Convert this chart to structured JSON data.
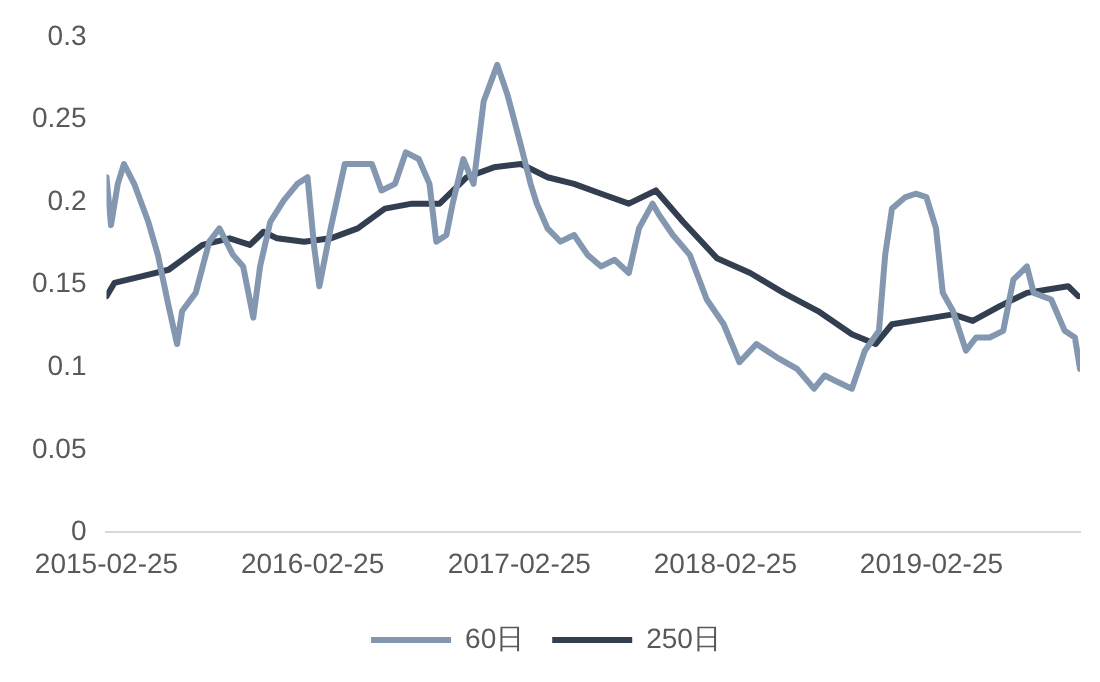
{
  "chart_data": {
    "type": "line",
    "xlim": [
      "2015-02-25",
      "2019-11-15"
    ],
    "xticks": [
      "2015-02-25",
      "2016-02-25",
      "2017-02-25",
      "2018-02-25",
      "2019-02-25"
    ],
    "ylim": [
      0,
      0.3
    ],
    "yticks": [
      0,
      0.05,
      0.1,
      0.15,
      0.2,
      0.25,
      0.3
    ],
    "grid": false,
    "legend": "bottom",
    "marker": "none",
    "line_style": "solid",
    "series": [
      {
        "name": "60日",
        "color": "#8497b0",
        "x": [
          "2015-02-25",
          "2015-03-05",
          "2015-03-17",
          "2015-03-28",
          "2015-04-15",
          "2015-05-10",
          "2015-05-27",
          "2015-06-15",
          "2015-06-30",
          "2015-07-09",
          "2015-08-02",
          "2015-08-26",
          "2015-09-13",
          "2015-10-07",
          "2015-10-25",
          "2015-11-12",
          "2015-11-24",
          "2015-12-12",
          "2016-01-05",
          "2016-01-29",
          "2016-02-16",
          "2016-02-28",
          "2016-03-08",
          "2016-03-28",
          "2016-04-22",
          "2016-05-15",
          "2016-06-09",
          "2016-06-26",
          "2016-07-20",
          "2016-08-08",
          "2016-08-31",
          "2016-09-19",
          "2016-10-01",
          "2016-10-19",
          "2016-10-30",
          "2016-11-18",
          "2016-12-06",
          "2016-12-24",
          "2017-01-17",
          "2017-02-04",
          "2017-02-28",
          "2017-03-17",
          "2017-03-28",
          "2017-04-16",
          "2017-05-09",
          "2017-06-02",
          "2017-06-26",
          "2017-07-20",
          "2017-08-13",
          "2017-09-07",
          "2017-09-25",
          "2017-10-19",
          "2017-10-31",
          "2017-11-24",
          "2017-12-24",
          "2018-01-23",
          "2018-02-22",
          "2018-03-22",
          "2018-04-21",
          "2018-05-27",
          "2018-07-02",
          "2018-08-01",
          "2018-08-20",
          "2018-09-12",
          "2018-10-07",
          "2018-10-30",
          "2018-11-24",
          "2018-12-05",
          "2018-12-17",
          "2019-01-10",
          "2019-01-28",
          "2019-02-16",
          "2019-03-05",
          "2019-03-17",
          "2019-04-04",
          "2019-04-27",
          "2019-05-15",
          "2019-06-08",
          "2019-07-02",
          "2019-07-20",
          "2019-08-13",
          "2019-08-25",
          "2019-09-25",
          "2019-10-19",
          "2019-11-06",
          "2019-11-15"
        ],
        "values": [
          0.215,
          0.186,
          0.211,
          0.223,
          0.211,
          0.188,
          0.168,
          0.137,
          0.114,
          0.134,
          0.145,
          0.176,
          0.184,
          0.168,
          0.161,
          0.13,
          0.161,
          0.188,
          0.201,
          0.211,
          0.215,
          0.172,
          0.149,
          0.184,
          0.223,
          0.223,
          0.223,
          0.207,
          0.211,
          0.23,
          0.226,
          0.211,
          0.176,
          0.18,
          0.199,
          0.226,
          0.211,
          0.261,
          0.283,
          0.265,
          0.234,
          0.211,
          0.199,
          0.184,
          0.176,
          0.18,
          0.168,
          0.161,
          0.165,
          0.157,
          0.184,
          0.199,
          0.192,
          0.18,
          0.168,
          0.141,
          0.126,
          0.103,
          0.114,
          0.106,
          0.099,
          0.087,
          0.095,
          0.091,
          0.087,
          0.11,
          0.122,
          0.168,
          0.196,
          0.203,
          0.205,
          0.203,
          0.184,
          0.145,
          0.134,
          0.11,
          0.118,
          0.118,
          0.122,
          0.153,
          0.161,
          0.145,
          0.141,
          0.122,
          0.118,
          0.099
        ]
      },
      {
        "name": "250日",
        "color": "#333f50",
        "x": [
          "2015-02-25",
          "2015-03-11",
          "2015-04-28",
          "2015-06-15",
          "2015-07-09",
          "2015-08-14",
          "2015-10-01",
          "2015-11-06",
          "2015-11-30",
          "2015-12-24",
          "2016-02-10",
          "2016-03-28",
          "2016-05-15",
          "2016-07-02",
          "2016-08-19",
          "2016-10-07",
          "2016-11-24",
          "2017-01-11",
          "2017-02-28",
          "2017-04-16",
          "2017-06-02",
          "2017-07-20",
          "2017-09-07",
          "2017-10-25",
          "2017-12-12",
          "2018-02-10",
          "2018-04-10",
          "2018-06-08",
          "2018-08-08",
          "2018-10-07",
          "2018-11-18",
          "2018-12-17",
          "2019-02-28",
          "2019-04-04",
          "2019-05-09",
          "2019-06-26",
          "2019-08-13",
          "2019-09-19",
          "2019-10-25",
          "2019-11-12"
        ],
        "values": [
          0.143,
          0.151,
          0.155,
          0.159,
          0.165,
          0.174,
          0.178,
          0.174,
          0.182,
          0.178,
          0.176,
          0.178,
          0.184,
          0.196,
          0.199,
          0.199,
          0.215,
          0.221,
          0.223,
          0.215,
          0.211,
          0.205,
          0.199,
          0.207,
          0.188,
          0.166,
          0.157,
          0.145,
          0.134,
          0.12,
          0.114,
          0.126,
          0.13,
          0.132,
          0.128,
          0.137,
          0.145,
          0.147,
          0.149,
          0.143
        ]
      }
    ]
  }
}
